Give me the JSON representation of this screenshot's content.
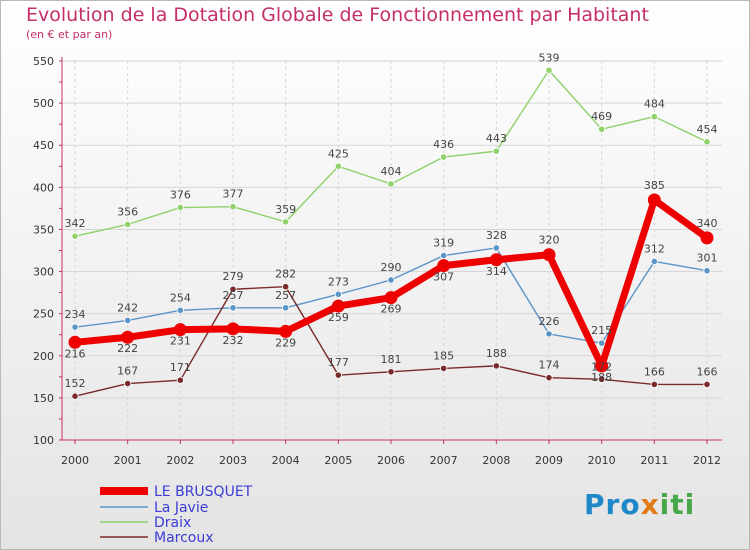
{
  "page": {
    "title": "Evolution de la Dotation Globale de Fonctionnement par Habitant",
    "subtitle": "(en € et par an)",
    "logo": {
      "text": "Proxiti",
      "parts": [
        "Pro",
        "x",
        "iti"
      ]
    }
  },
  "colors": {
    "title": "#c42e6a",
    "axis": "#c42e6a",
    "grid": "#d6d6d6",
    "le_brusquet": "#ee0000",
    "la_javie": "#5b95c8",
    "draix": "#8fd16b",
    "marcoux": "#7a2a2a",
    "legend_text": "#3b3bd6"
  },
  "chart_data": {
    "type": "line",
    "title": "Evolution de la Dotation Globale de Fonctionnement par Habitant",
    "subtitle": "(en € et par an)",
    "xlabel": "",
    "ylabel": "",
    "ylim": [
      100,
      550
    ],
    "yticks": [
      100,
      150,
      200,
      250,
      300,
      350,
      400,
      450,
      500,
      550
    ],
    "grid": true,
    "legend_position": "bottom-left",
    "x": [
      "2000",
      "2001",
      "2002",
      "2003",
      "2004",
      "2005",
      "2006",
      "2007",
      "2008",
      "2009",
      "2010",
      "2011",
      "2012"
    ],
    "series": [
      {
        "key": "draix",
        "name": "Draix",
        "values": [
          342,
          356,
          376,
          377,
          359,
          425,
          404,
          436,
          443,
          539,
          469,
          484,
          454
        ],
        "labels": [
          "342",
          "356",
          "376",
          "377",
          "359",
          "425",
          "404",
          "436",
          "443",
          "539",
          "469",
          "484",
          "454"
        ]
      },
      {
        "key": "la_javie",
        "name": "La Javie",
        "values": [
          234,
          242,
          254,
          257,
          257,
          273,
          290,
          319,
          328,
          226,
          215,
          312,
          301
        ],
        "labels": [
          "234",
          "242",
          "254",
          "257",
          "257",
          "273",
          "290",
          "319",
          "328",
          "226",
          "215",
          "312",
          "301"
        ]
      },
      {
        "key": "marcoux",
        "name": "Marcoux",
        "values": [
          152,
          167,
          171,
          279,
          282,
          177,
          181,
          185,
          188,
          174,
          172,
          166,
          166
        ],
        "labels": [
          "152",
          "167",
          "171",
          "279",
          "282",
          "177",
          "181",
          "185",
          "188",
          "174",
          "172",
          "166",
          "166"
        ]
      },
      {
        "key": "le_brusquet",
        "name": "LE BRUSQUET",
        "values": [
          216,
          222,
          231,
          232,
          229,
          259,
          269,
          307,
          314,
          320,
          188,
          385,
          340
        ],
        "labels": [
          "216",
          "222",
          "231",
          "232",
          "229",
          "259",
          "269",
          "307",
          "314",
          "320",
          "188",
          "385",
          "340"
        ]
      }
    ],
    "legend": [
      "LE BRUSQUET",
      "La Javie",
      "Draix",
      "Marcoux"
    ]
  }
}
